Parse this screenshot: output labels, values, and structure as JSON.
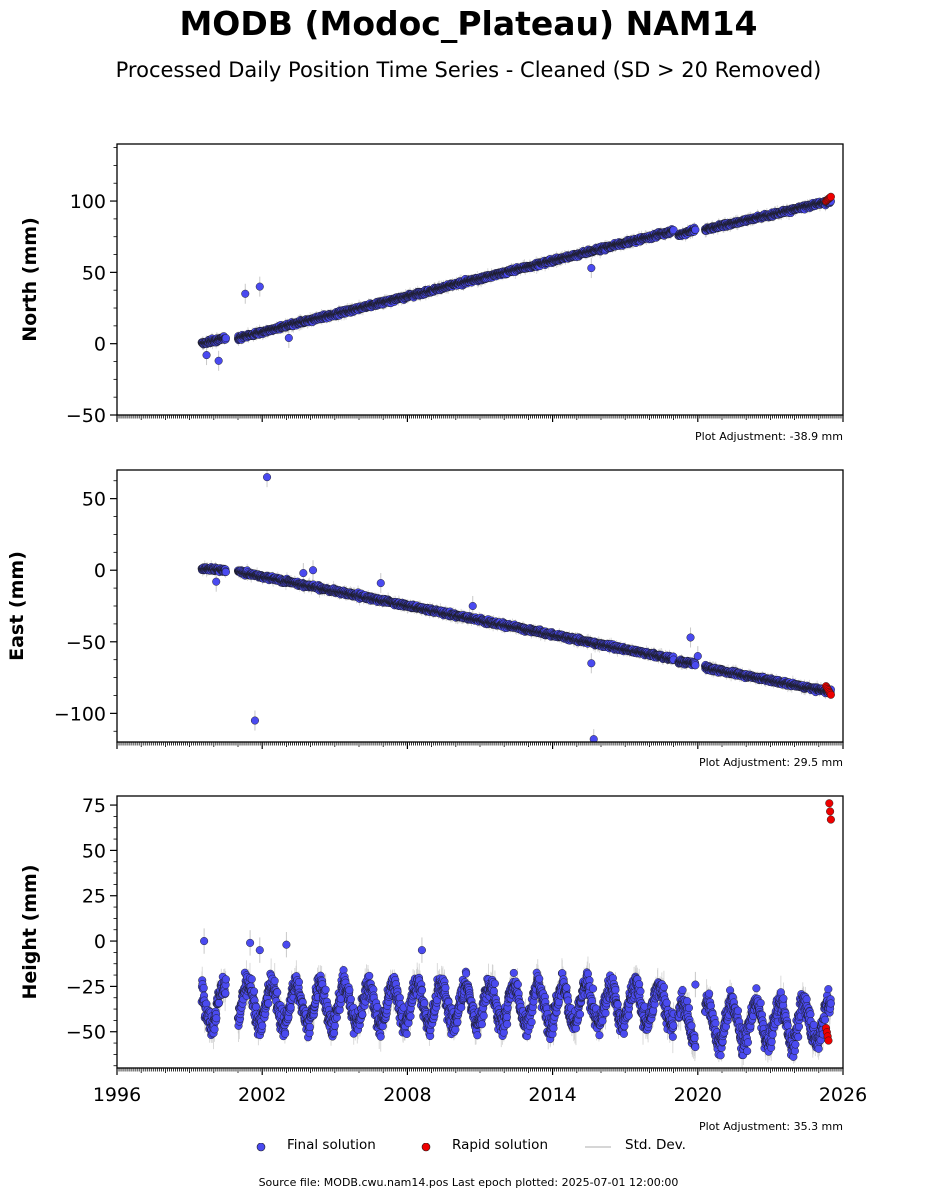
{
  "title": "MODB (Modoc_Plateau) NAM14",
  "subtitle": "Processed Daily Position Time Series - Cleaned (SD > 20 Removed)",
  "footer": "Source file: MODB.cwu.nam14.pos  Last epoch plotted: 2025-07-01 12:00:00",
  "legend": {
    "final": "Final solution",
    "rapid": "Rapid solution",
    "std": "Std. Dev."
  },
  "colors": {
    "final": "#4a4af0",
    "rapid": "#ee0000",
    "std": "#c8c8c8",
    "marker_edge": "#1a1a1a"
  },
  "chart_data": [
    {
      "type": "scatter",
      "ylabel": "North (mm)",
      "xlim": [
        1996,
        2026
      ],
      "ylim": [
        -50,
        140
      ],
      "yticks": [
        -50,
        0,
        50,
        100
      ],
      "xticks": [],
      "adjustment": "Plot Adjustment: -38.9 mm",
      "series": [
        {
          "name": "Final solution",
          "segments": [
            {
              "x": [
                1999.5,
                2000.5
              ],
              "y": [
                0,
                4
              ]
            },
            {
              "x": [
                2001.0,
                2019.0
              ],
              "y": [
                4,
                79
              ]
            },
            {
              "x": [
                2019.2,
                2019.9
              ],
              "y": [
                76,
                80
              ]
            },
            {
              "x": [
                2020.3,
                2025.5
              ],
              "y": [
                80,
                100
              ]
            }
          ],
          "outliers": [
            [
              2001.3,
              35
            ],
            [
              2001.9,
              40
            ],
            [
              2000.2,
              -12
            ],
            [
              1999.7,
              -8
            ],
            [
              2015.6,
              53
            ],
            [
              2003.1,
              4
            ]
          ]
        },
        {
          "name": "Rapid solution",
          "x": [
            2025.3,
            2025.5
          ],
          "y": [
            100,
            103
          ]
        }
      ]
    },
    {
      "type": "scatter",
      "ylabel": "East (mm)",
      "xlim": [
        1996,
        2026
      ],
      "ylim": [
        -120,
        70
      ],
      "yticks": [
        -100,
        -50,
        0,
        50
      ],
      "xticks": [],
      "adjustment": "Plot Adjustment: 29.5 mm",
      "series": [
        {
          "name": "Final solution",
          "segments": [
            {
              "x": [
                1999.5,
                2000.5
              ],
              "y": [
                1,
                0
              ]
            },
            {
              "x": [
                2001.0,
                2019.0
              ],
              "y": [
                -1,
                -62
              ]
            },
            {
              "x": [
                2019.2,
                2019.9
              ],
              "y": [
                -64,
                -65
              ]
            },
            {
              "x": [
                2020.3,
                2025.5
              ],
              "y": [
                -68,
                -85
              ]
            }
          ],
          "outliers": [
            [
              2002.2,
              65
            ],
            [
              2001.7,
              -105
            ],
            [
              2015.7,
              -118
            ],
            [
              2015.6,
              -65
            ],
            [
              2019.7,
              -47
            ],
            [
              2020.0,
              -60
            ],
            [
              2003.7,
              -2
            ],
            [
              2004.1,
              0
            ],
            [
              2006.9,
              -9
            ],
            [
              2010.7,
              -25
            ],
            [
              2000.1,
              -8
            ]
          ]
        },
        {
          "name": "Rapid solution",
          "x": [
            2025.3,
            2025.5
          ],
          "y": [
            -81,
            -87
          ]
        }
      ]
    },
    {
      "type": "scatter",
      "ylabel": "Height (mm)",
      "xlim": [
        1996,
        2026
      ],
      "ylim": [
        -70,
        80
      ],
      "yticks": [
        -50,
        -25,
        0,
        25,
        50,
        75
      ],
      "xticks": [
        "1996",
        "2002",
        "2008",
        "2014",
        "2020",
        "2026"
      ],
      "adjustment": "Plot Adjustment: 35.3 mm",
      "series": [
        {
          "name": "Final solution",
          "segments": [
            {
              "x": [
                1999.5,
                2000.5
              ],
              "y": [
                -35,
                -35
              ]
            },
            {
              "x": [
                2001.0,
                2019.0
              ],
              "y": [
                -35,
                -35
              ]
            },
            {
              "x": [
                2019.2,
                2019.9
              ],
              "y": [
                -45,
                -45
              ]
            },
            {
              "x": [
                2020.3,
                2025.5
              ],
              "y": [
                -45,
                -45
              ]
            }
          ],
          "outliers": [
            [
              1999.6,
              0
            ],
            [
              2001.5,
              -1
            ],
            [
              2001.9,
              -5
            ],
            [
              2003.0,
              -2
            ],
            [
              2008.6,
              -5
            ],
            [
              2019.9,
              -24
            ]
          ]
        },
        {
          "name": "Rapid solution",
          "x": [
            2025.3,
            2025.5
          ],
          "y": [
            -48,
            76
          ]
        }
      ]
    }
  ]
}
